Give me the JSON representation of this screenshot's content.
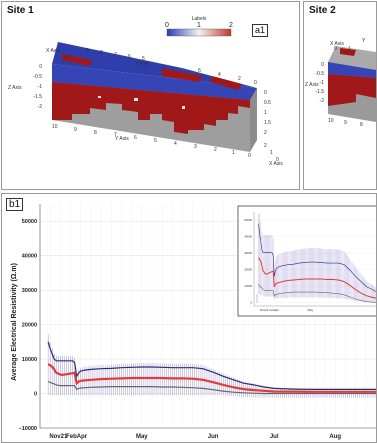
{
  "panels": {
    "site1": {
      "title": "Site 1",
      "tag": "a1",
      "colorbar": {
        "label": "Labels",
        "ticks": [
          "0",
          "1",
          "2"
        ],
        "colors": {
          "low": "#2b3bb3",
          "mid": "#f2f2f2",
          "high": "#c0392b"
        }
      },
      "axis_labels": [
        "X Axis",
        "Y Axis",
        "Z Axis",
        "Y Axis",
        "X Axis"
      ],
      "ticks": {
        "x_top": [
          "10",
          "9",
          "8",
          "7",
          "6",
          "5"
        ],
        "y_top": [
          "6",
          "4",
          "2",
          "0"
        ],
        "z_left": [
          "0",
          "-0.5",
          "-1",
          "-1.5",
          "-2"
        ],
        "x_bottom": [
          "10",
          "9",
          "8",
          "7",
          "6",
          "5",
          "4",
          "3",
          "2",
          "1",
          "0"
        ],
        "z_right": [
          "0",
          "0.5",
          "1",
          "1.5",
          "2"
        ],
        "y_right": [
          "2",
          "1",
          "0"
        ]
      }
    },
    "site2": {
      "title": "Site 2",
      "axis_labels": [
        "X Axis",
        "Z Axis",
        "Y"
      ],
      "ticks": {
        "x_top": [
          "0",
          "1"
        ],
        "z_left": [
          "0",
          "-0.5",
          "-1",
          "-1.5",
          "-2"
        ],
        "x_bottom": [
          "10",
          "9",
          "8"
        ]
      }
    },
    "b1": {
      "tag": "b1"
    }
  },
  "chart_data": {
    "type": "line",
    "ylabel": "Average Electrical Resistivity (Ω.m)",
    "xlabel": "",
    "ylim": [
      -10000,
      55000
    ],
    "yticks": [
      "50000",
      "40000",
      "30000",
      "20000",
      "10000",
      "0",
      "−10000"
    ],
    "xticks": [
      {
        "label": "Nov21",
        "pos": 9
      },
      {
        "label": "FebApr",
        "pos": 18
      },
      {
        "label": "May",
        "pos": 50
      },
      {
        "label": "Jun",
        "pos": 85
      },
      {
        "label": "Jul",
        "pos": 115
      },
      {
        "label": "Aug",
        "pos": 145
      }
    ],
    "xlim": [
      0,
      165
    ],
    "grid": true,
    "colors": {
      "upper": "#2e2a7a",
      "mid": "#e23a3a",
      "lower": "#666666"
    },
    "series": [
      {
        "key": "upper",
        "points": [
          [
            4,
            15000
          ],
          [
            5,
            13000
          ],
          [
            6,
            11500
          ],
          [
            7,
            10000
          ],
          [
            8,
            9500
          ],
          [
            9,
            9500
          ],
          [
            10,
            9500
          ],
          [
            11,
            9500
          ],
          [
            12,
            9500
          ],
          [
            13,
            9500
          ],
          [
            14,
            9500
          ],
          [
            15,
            9500
          ],
          [
            16,
            9500
          ],
          [
            17,
            9000
          ],
          [
            18,
            5000
          ],
          [
            19,
            6000
          ],
          [
            20,
            6500
          ],
          [
            22,
            6800
          ],
          [
            25,
            7000
          ],
          [
            30,
            7200
          ],
          [
            35,
            7300
          ],
          [
            40,
            7500
          ],
          [
            45,
            7600
          ],
          [
            50,
            7700
          ],
          [
            55,
            7700
          ],
          [
            60,
            7600
          ],
          [
            65,
            7500
          ],
          [
            70,
            7500
          ],
          [
            75,
            7500
          ],
          [
            80,
            7200
          ],
          [
            85,
            6200
          ],
          [
            90,
            5000
          ],
          [
            95,
            4000
          ],
          [
            100,
            3000
          ],
          [
            105,
            2500
          ],
          [
            110,
            1900
          ],
          [
            115,
            1500
          ],
          [
            125,
            1300
          ],
          [
            135,
            1200
          ],
          [
            145,
            1200
          ],
          [
            155,
            1200
          ],
          [
            165,
            1200
          ]
        ]
      },
      {
        "key": "mid",
        "points": [
          [
            4,
            8500
          ],
          [
            5,
            8200
          ],
          [
            6,
            7800
          ],
          [
            7,
            7000
          ],
          [
            8,
            6000
          ],
          [
            9,
            5800
          ],
          [
            10,
            5500
          ],
          [
            11,
            5400
          ],
          [
            12,
            5500
          ],
          [
            13,
            5600
          ],
          [
            14,
            5700
          ],
          [
            15,
            5800
          ],
          [
            16,
            5900
          ],
          [
            17,
            6000
          ],
          [
            18,
            3000
          ],
          [
            19,
            3500
          ],
          [
            20,
            3700
          ],
          [
            22,
            3800
          ],
          [
            25,
            4000
          ],
          [
            30,
            4200
          ],
          [
            35,
            4300
          ],
          [
            40,
            4400
          ],
          [
            45,
            4500
          ],
          [
            50,
            4500
          ],
          [
            55,
            4500
          ],
          [
            60,
            4500
          ],
          [
            65,
            4400
          ],
          [
            70,
            4400
          ],
          [
            75,
            4300
          ],
          [
            80,
            4000
          ],
          [
            85,
            3300
          ],
          [
            90,
            2500
          ],
          [
            95,
            1800
          ],
          [
            100,
            1300
          ],
          [
            105,
            1000
          ],
          [
            110,
            800
          ],
          [
            115,
            600
          ],
          [
            125,
            550
          ],
          [
            135,
            500
          ],
          [
            145,
            500
          ],
          [
            155,
            500
          ],
          [
            165,
            500
          ]
        ]
      },
      {
        "key": "lower",
        "points": [
          [
            4,
            3500
          ],
          [
            5,
            3200
          ],
          [
            6,
            3000
          ],
          [
            7,
            2800
          ],
          [
            8,
            2500
          ],
          [
            9,
            2400
          ],
          [
            10,
            2300
          ],
          [
            11,
            2300
          ],
          [
            12,
            2300
          ],
          [
            13,
            2300
          ],
          [
            14,
            2300
          ],
          [
            15,
            2300
          ],
          [
            16,
            2300
          ],
          [
            17,
            2300
          ],
          [
            18,
            1200
          ],
          [
            19,
            1500
          ],
          [
            20,
            1600
          ],
          [
            22,
            1700
          ],
          [
            25,
            1800
          ],
          [
            30,
            1900
          ],
          [
            35,
            2000
          ],
          [
            40,
            2000
          ],
          [
            45,
            2000
          ],
          [
            50,
            2000
          ],
          [
            55,
            2000
          ],
          [
            60,
            1900
          ],
          [
            65,
            1900
          ],
          [
            70,
            1800
          ],
          [
            75,
            1700
          ],
          [
            80,
            1500
          ],
          [
            85,
            1100
          ],
          [
            90,
            700
          ],
          [
            95,
            400
          ],
          [
            100,
            200
          ],
          [
            105,
            100
          ],
          [
            110,
            0
          ],
          [
            115,
            0
          ],
          [
            125,
            0
          ],
          [
            135,
            0
          ],
          [
            145,
            0
          ],
          [
            155,
            0
          ],
          [
            165,
            0
          ]
        ]
      }
    ],
    "inset": {
      "yticks": [
        "50000",
        "40000",
        "30000",
        "20000",
        "10000",
        "0"
      ],
      "xticks": [
        "Nov21",
        "FebApr",
        "May"
      ]
    }
  }
}
